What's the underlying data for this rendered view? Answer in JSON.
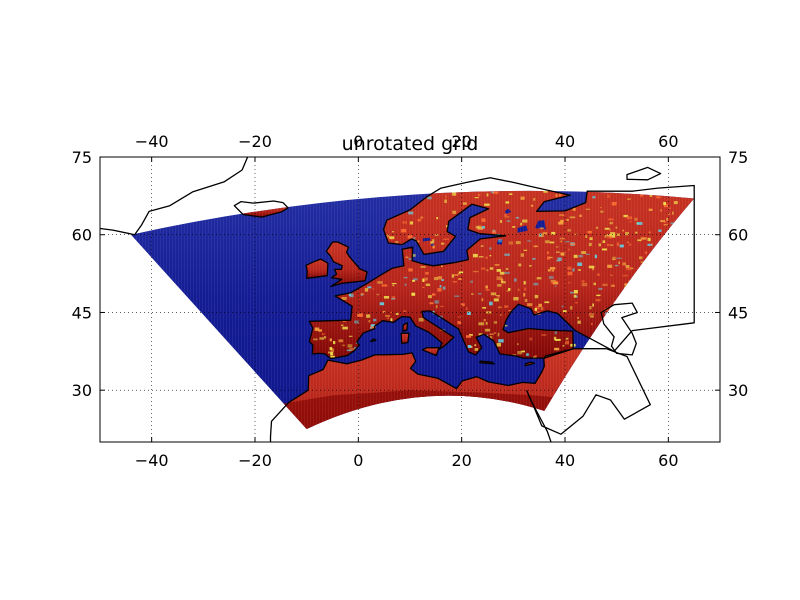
{
  "title": "unrotated grid",
  "chart_data": {
    "type": "heatmap",
    "projection": "plate-carree",
    "title": "unrotated grid",
    "xlabel": "",
    "ylabel": "",
    "xlim": [
      -50,
      70
    ],
    "ylim": [
      20,
      75
    ],
    "xticks": [
      -40,
      -20,
      0,
      20,
      40,
      60
    ],
    "yticks": [
      30,
      45,
      60,
      75
    ],
    "grid": true,
    "grid_style": "dotted",
    "tick_labels_on": [
      "bottom",
      "top",
      "left",
      "right"
    ],
    "domain_corners": [
      {
        "lon": -44,
        "lat": 60
      },
      {
        "lon": 65,
        "lat": 67
      },
      {
        "lon": 36,
        "lat": 26
      },
      {
        "lon": -10,
        "lat": 22.5
      }
    ],
    "field": "land-sea values (ocean low, land high)",
    "colormap": "jet",
    "colors": {
      "ocean": "#141c94",
      "land": "#c22a20",
      "land_dark": "#8a0b08",
      "highlight_yellow": "#f2e64a",
      "highlight_cyan": "#5fd0e6",
      "coastline": "#000000",
      "grid": "#000000"
    }
  }
}
